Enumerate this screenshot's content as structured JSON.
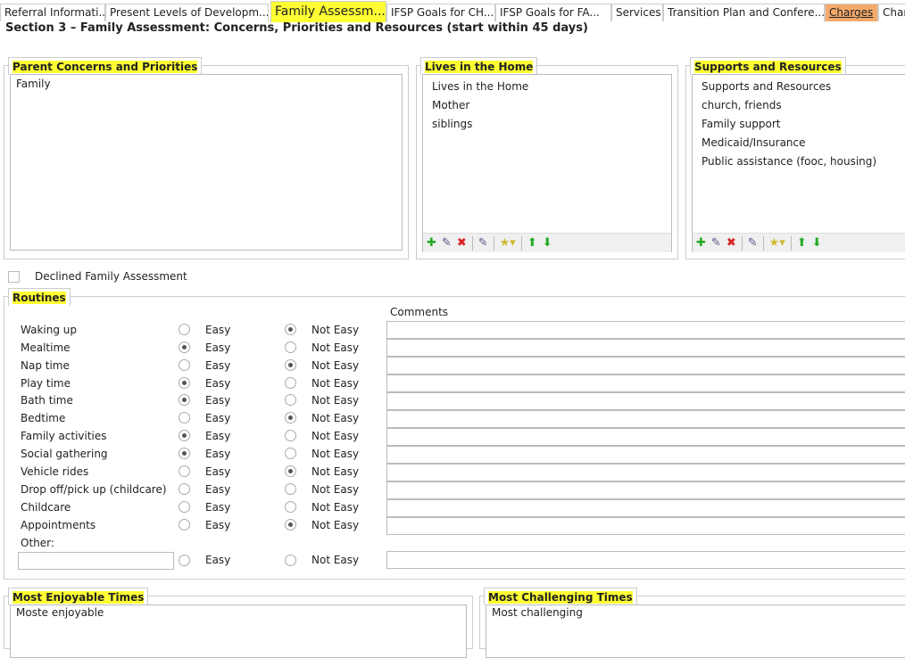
{
  "tabs": [
    {
      "label": "Referral Informati..."
    },
    {
      "label": "Present Levels of Developm..."
    },
    {
      "label": "Family Assessm..."
    },
    {
      "label": "IFSP Goals for CH..."
    },
    {
      "label": "IFSP Goals for FA..."
    },
    {
      "label": "Services"
    },
    {
      "label": "Transition Plan and Confere..."
    },
    {
      "label": "Charges"
    },
    {
      "label": "Char"
    }
  ],
  "section_title": "Section 3 – Family Assessment: Concerns, Priorities and Resources (start within 45 days)",
  "parent_concerns": {
    "label": "Parent Concerns and Priorities",
    "value": "Family"
  },
  "lives_in_home": {
    "label": "Lives in the Home",
    "items": [
      "Lives in the Home",
      "Mother",
      "siblings"
    ]
  },
  "supports": {
    "label": "Supports and Resources",
    "items": [
      "Supports and Resources",
      "church, friends",
      "Family support",
      "Medicaid/Insurance",
      "Public assistance (fooc, housing)"
    ]
  },
  "declined_label": "Declined Family Assessment",
  "declined_checked": false,
  "routines": {
    "label": "Routines",
    "comments_header": "Comments",
    "easy_label": "Easy",
    "not_easy_label": "Not Easy",
    "other_label": "Other:",
    "rows": [
      {
        "name": "Waking up",
        "value": "Not Easy"
      },
      {
        "name": "Mealtime",
        "value": "Easy"
      },
      {
        "name": "Nap time",
        "value": "Not Easy"
      },
      {
        "name": "Play time",
        "value": "Easy"
      },
      {
        "name": "Bath time",
        "value": "Easy"
      },
      {
        "name": "Bedtime",
        "value": "Not Easy"
      },
      {
        "name": "Family activities",
        "value": "Easy"
      },
      {
        "name": "Social gathering",
        "value": "Easy"
      },
      {
        "name": "Vehicle rides",
        "value": "Not Easy"
      },
      {
        "name": "Drop off/pick up (childcare)",
        "value": ""
      },
      {
        "name": "Childcare",
        "value": ""
      },
      {
        "name": "Appointments",
        "value": "Not Easy"
      }
    ]
  },
  "enjoyable": {
    "label": "Most Enjoyable Times",
    "value": "Moste enjoyable"
  },
  "challenging": {
    "label": "Most Challenging Times",
    "value": "Most challenging"
  }
}
